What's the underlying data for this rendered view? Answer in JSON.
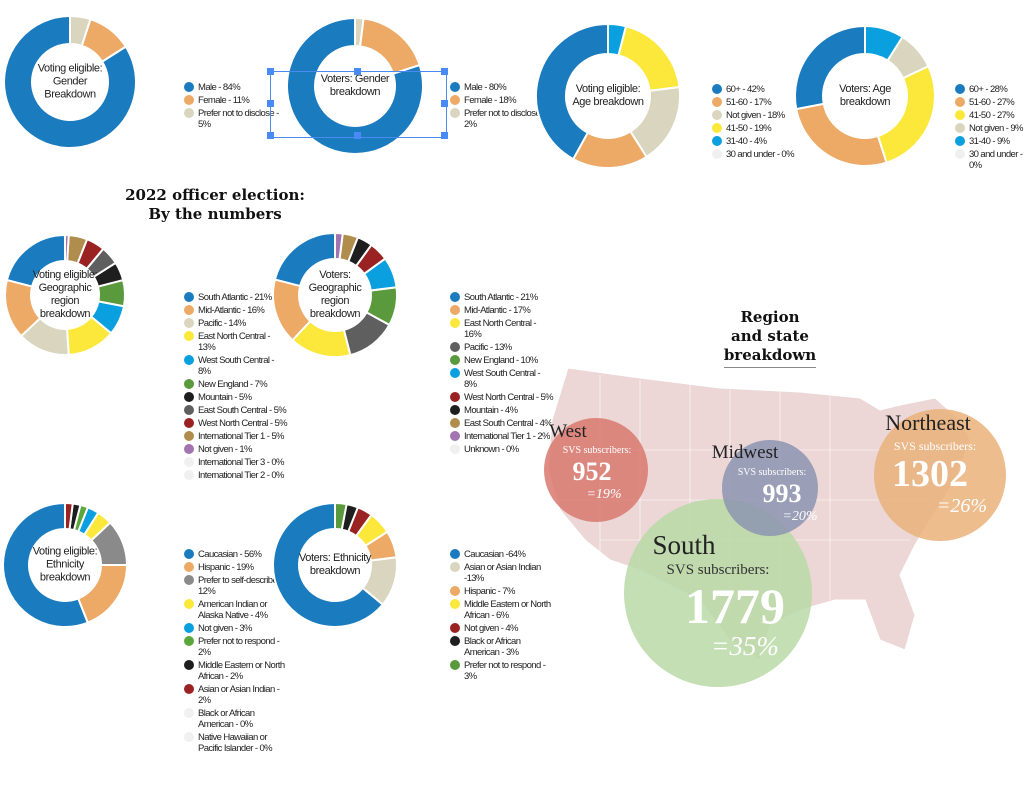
{
  "chart_data": [
    {
      "type": "pie",
      "title": "Voting eligible: Gender Breakdown",
      "labels": [
        "Male - 84%",
        "Female - 11%",
        "Prefer not to disclose - 5%"
      ],
      "values": [
        84,
        11,
        5
      ],
      "colors": [
        "#1a7bbf",
        "#eda966",
        "#d9d5bf"
      ]
    },
    {
      "type": "pie",
      "title": "Voters: Gender breakdown",
      "labels": [
        "Male - 80%",
        "Female - 18%",
        "Prefer not to disclose - 2%"
      ],
      "values": [
        80,
        18,
        2
      ],
      "colors": [
        "#1a7bbf",
        "#eda966",
        "#d9d5bf"
      ]
    },
    {
      "type": "pie",
      "title": "Voting eligible: Age breakdown",
      "labels": [
        "60+ - 42%",
        "51-60 - 17%",
        "Not given - 18%",
        "41-50 - 19%",
        "31-40 - 4%",
        "30 and under - 0%"
      ],
      "values": [
        42,
        17,
        18,
        19,
        4,
        0
      ],
      "colors": [
        "#1a7bbf",
        "#eda966",
        "#d9d5bf",
        "#fbe83a",
        "#0a9fdf",
        "#f0f0f0"
      ]
    },
    {
      "type": "pie",
      "title": "Voters: Age breakdown",
      "labels": [
        "60+ - 28%",
        "51-60 - 27%",
        "41-50 - 27%",
        "Not given - 9%",
        "31-40 - 9%",
        "30 and under - 0%"
      ],
      "values": [
        28,
        27,
        27,
        9,
        9,
        0
      ],
      "colors": [
        "#1a7bbf",
        "#eda966",
        "#fbe83a",
        "#d9d5bf",
        "#0a9fdf",
        "#f0f0f0"
      ]
    },
    {
      "type": "pie",
      "title": "Voting eligible: Geographic region breakdown",
      "labels": [
        "South Atlantic - 21%",
        "Mid-Atlantic - 16%",
        "Pacific - 14%",
        "East North Central - 13%",
        "West South Central - 8%",
        "New England - 7%",
        "Mountain - 5%",
        "East South Central - 5%",
        "West North Central - 5%",
        "International Tier 1 - 5%",
        "Not given - 1%",
        "International Tier 3 - 0%",
        "International Tier 2 - 0%"
      ],
      "values": [
        21,
        16,
        14,
        13,
        8,
        7,
        5,
        5,
        5,
        5,
        1,
        0,
        0
      ],
      "colors": [
        "#1a7bbf",
        "#eda966",
        "#d9d5bf",
        "#fbe83a",
        "#0a9fdf",
        "#5a9a3c",
        "#1e1e1e",
        "#5f5f5f",
        "#9a2222",
        "#b08d4c",
        "#a274b0",
        "#f0f0f0",
        "#f0f0f0"
      ]
    },
    {
      "type": "pie",
      "title": "Voters: Geographic region breakdown",
      "labels": [
        "South Atlantic - 21%",
        "Mid-Atlantic - 17%",
        "East North Central - 16%",
        "Pacific - 13%",
        "New England - 10%",
        "West South Central - 8%",
        "West North Central - 5%",
        "Mountain - 4%",
        "East South Central - 4%",
        "International Tier 1 - 2%",
        "Unknown - 0%"
      ],
      "values": [
        21,
        17,
        16,
        13,
        10,
        8,
        5,
        4,
        4,
        2,
        0
      ],
      "colors": [
        "#1a7bbf",
        "#eda966",
        "#fbe83a",
        "#5f5f5f",
        "#5a9a3c",
        "#0a9fdf",
        "#9a2222",
        "#1e1e1e",
        "#b08d4c",
        "#a274b0",
        "#f0f0f0"
      ]
    },
    {
      "type": "pie",
      "title": "Voting eligible: Ethnicity breakdown",
      "labels": [
        "Caucasian - 56%",
        "Hispanic - 19%",
        "Prefer to self-describe - 12%",
        "American Indian or Alaska Native - 4%",
        "Not given - 3%",
        "Prefer not to respond - 2%",
        "Middle Eastern or North African - 2%",
        "Asian or Asian Indian - 2%",
        "Black or African American - 0%",
        "Native Hawaiian or Pacific Islander - 0%"
      ],
      "values": [
        56,
        19,
        12,
        4,
        3,
        2,
        2,
        2,
        0,
        0
      ],
      "colors": [
        "#1a7bbf",
        "#eda966",
        "#8a8a8a",
        "#fbe83a",
        "#0a9fdf",
        "#5aa83c",
        "#1e1e1e",
        "#9a2222",
        "#f0f0f0",
        "#f0f0f0"
      ]
    },
    {
      "type": "pie",
      "title": "Voters: Ethnicity breakdown",
      "labels": [
        "Caucasian -64%",
        "Asian or Asian Indian -13%",
        "Hispanic - 7%",
        "Middle Eastern or North African - 6%",
        "Not given - 4%",
        "Black or African American - 3%",
        "Prefer not to respond - 3%"
      ],
      "values": [
        64,
        13,
        7,
        6,
        4,
        3,
        3
      ],
      "colors": [
        "#1a7bbf",
        "#d9d5bf",
        "#eda966",
        "#fbe83a",
        "#9a2222",
        "#1e1e1e",
        "#5a9a3c"
      ]
    }
  ],
  "headline": [
    "2022 officer election:",
    "By the numbers"
  ],
  "map": {
    "title": [
      "Region",
      "and state",
      "breakdown"
    ],
    "regions": [
      {
        "name": "West",
        "label": "SVS subscribers:",
        "count": "952",
        "pct": "=19%",
        "color": "#d9796f"
      },
      {
        "name": "Midwest",
        "label": "SVS subscribers:",
        "count": "993",
        "pct": "=20%",
        "color": "#8c94b0"
      },
      {
        "name": "Northeast",
        "label": "SVS subscribers:",
        "count": "1302",
        "pct": "=26%",
        "color": "#eab27a"
      },
      {
        "name": "South",
        "label": "SVS subscribers:",
        "count": "1779",
        "pct": "=35%",
        "color": "#b9d9a6"
      }
    ]
  }
}
